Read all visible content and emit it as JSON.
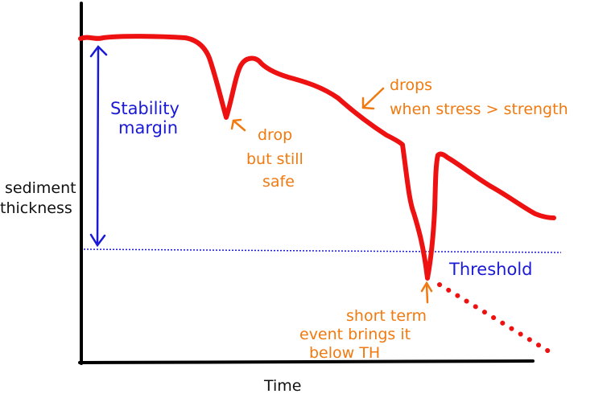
{
  "axes": {
    "x_label": "Time",
    "y_label_line1": "sediment",
    "y_label_line2": "thickness"
  },
  "annotations": {
    "stability_margin": [
      "Stability",
      "margin"
    ],
    "threshold": "Threshold",
    "drop_safe": [
      "drop",
      "but still",
      "safe"
    ],
    "drops_when": [
      "drops",
      "when stress > strength"
    ],
    "short_term": [
      "short term",
      "event brings it",
      "below TH"
    ]
  },
  "colors": {
    "axis": "#000000",
    "curve": "#ee1111",
    "threshold": "#1a1ad6",
    "margin_arrow": "#1a1ad6",
    "annotation": "#f07a10"
  }
}
